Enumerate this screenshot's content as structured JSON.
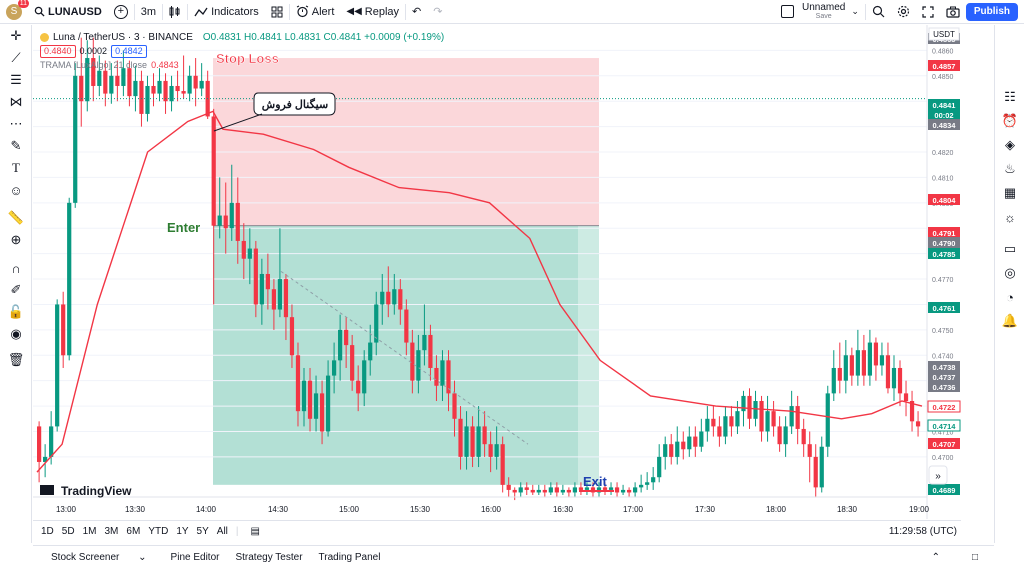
{
  "header": {
    "avatar_letter": "S",
    "notifications": "11",
    "symbol": "LUNAUSD",
    "add_symbol": "+",
    "interval": "3m",
    "indicators_label": "Indicators",
    "alert_label": "Alert",
    "replay_label": "Replay",
    "layout_name": "Unnamed",
    "layout_status": "Save",
    "publish_label": "Publish"
  },
  "legend": {
    "title": "Luna / TetherUS · 3 · BINANCE",
    "ohlc": "O0.4831 H0.4841 L0.4831 C0.4841 +0.0009 (+0.19%)",
    "bid": "0.4840",
    "spread": "0.0002",
    "ask": "0.4842",
    "indicator": "TRAMA [LuxAlgo] 21 close",
    "indicator_value": "0.4843"
  },
  "annotations": {
    "stop_loss": "Stop Loss",
    "enter": "Enter",
    "exit": "Exit",
    "signal": "سیگنال فروش"
  },
  "price_axis": {
    "currency": "USDT",
    "ticks": [
      "0.4860",
      "0.4850",
      "0.4830",
      "0.4820",
      "0.4810",
      "0.4800",
      "0.4780",
      "0.4770",
      "0.4750",
      "0.4740",
      "0.4730",
      "0.4710",
      "0.4700"
    ],
    "labels": [
      {
        "value": "0.4865",
        "color": "#787b86"
      },
      {
        "value": "0.4857",
        "color": "#f23645"
      },
      {
        "value": "0.4841",
        "color": "#089981"
      },
      {
        "value": "00:02",
        "color": "#089981"
      },
      {
        "value": "0.4834",
        "color": "#787b86"
      },
      {
        "value": "0.4804",
        "color": "#f23645"
      },
      {
        "value": "0.4791",
        "color": "#f23645"
      },
      {
        "value": "0.4790",
        "color": "#787b86"
      },
      {
        "value": "0.4785",
        "color": "#089981"
      },
      {
        "value": "0.4761",
        "color": "#089981"
      },
      {
        "value": "0.4738",
        "color": "#787b86"
      },
      {
        "value": "0.4737",
        "color": "#787b86"
      },
      {
        "value": "0.4736",
        "color": "#787b86"
      },
      {
        "value": "0.4722",
        "color": "#f23645"
      },
      {
        "value": "0.4714",
        "color": "#089981"
      },
      {
        "value": "0.4707",
        "color": "#f23645"
      },
      {
        "value": "0.4689",
        "color": "#089981"
      }
    ]
  },
  "time_axis": [
    "13:00",
    "13:30",
    "14:00",
    "14:30",
    "15:00",
    "15:30",
    "16:00",
    "16:30",
    "17:00",
    "17:30",
    "18:00",
    "18:30",
    "19:00"
  ],
  "timeframes": [
    "1D",
    "5D",
    "1M",
    "3M",
    "6M",
    "YTD",
    "1Y",
    "5Y",
    "All"
  ],
  "clock": "11:29:58 (UTC)",
  "bottom_tabs": [
    "Stock Screener",
    "Pine Editor",
    "Strategy Tester",
    "Trading Panel"
  ],
  "logo_text": "TradingView",
  "colors": {
    "up": "#089981",
    "down": "#f23645",
    "trama": "#f23645",
    "stop_zone": "#f8b6bc",
    "target_zone": "#80cbb9",
    "accent": "#2962ff"
  },
  "chart_data": {
    "type": "candlestick",
    "ylim": [
      0.4685,
      0.487
    ],
    "x": [
      "12:51",
      "13:00",
      "13:30",
      "14:00",
      "14:30",
      "15:00",
      "15:30",
      "16:00",
      "16:30",
      "17:00",
      "17:30",
      "18:00",
      "18:30",
      "19:00",
      "19:12"
    ],
    "trama": [
      [
        0,
        0.4694
      ],
      [
        5,
        0.4705
      ],
      [
        12,
        0.476
      ],
      [
        22,
        0.482
      ],
      [
        30,
        0.4832
      ],
      [
        35,
        0.4836
      ],
      [
        37,
        0.4829
      ],
      [
        45,
        0.4827
      ],
      [
        55,
        0.4821
      ],
      [
        62,
        0.4814
      ],
      [
        72,
        0.4806
      ],
      [
        82,
        0.4804
      ],
      [
        90,
        0.48
      ],
      [
        98,
        0.4786
      ],
      [
        104,
        0.476
      ],
      [
        112,
        0.4738
      ],
      [
        122,
        0.4724
      ],
      [
        135,
        0.472
      ],
      [
        150,
        0.4718
      ],
      [
        160,
        0.4715
      ],
      [
        166,
        0.4717
      ],
      [
        172,
        0.4722
      ],
      [
        176,
        0.472
      ]
    ],
    "position": {
      "side": "short",
      "entry": 0.4791,
      "stop": 0.4857,
      "target": 0.4689,
      "start_time": "14:00",
      "end_time": "16:48"
    }
  }
}
